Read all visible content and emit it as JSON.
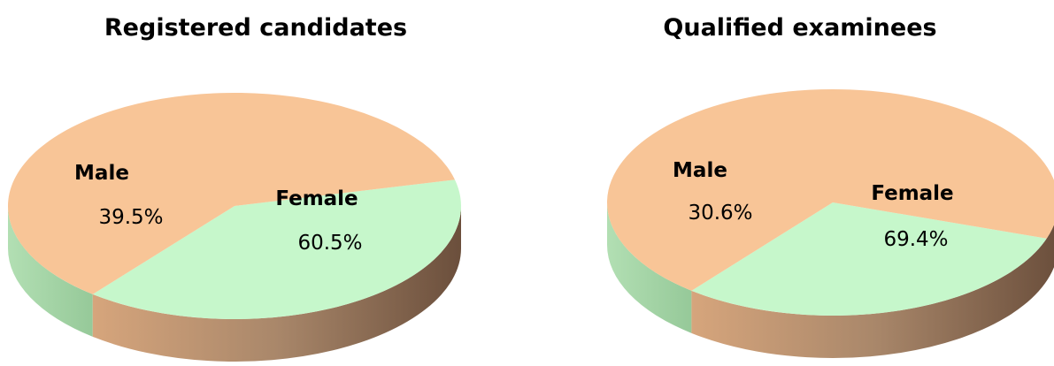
{
  "colors": {
    "male_top": "#c6f7cb",
    "female_top": "#f8c597",
    "male_side_light": "#b2dfb3",
    "male_side_dark": "#96c999",
    "female_side_light": "#d6a57c",
    "female_side_mid": "#a9876a",
    "female_side_dark": "#6b4f3c",
    "background": "#ffffff"
  },
  "chart_data": [
    {
      "type": "pie",
      "title": "Registered candidates",
      "slices": [
        {
          "label": "Male",
          "value": 39.5,
          "value_label": "39.5%",
          "color_key": "male"
        },
        {
          "label": "Female",
          "value": 60.5,
          "value_label": "60.5%",
          "color_key": "female"
        }
      ]
    },
    {
      "type": "pie",
      "title": "Qualified examinees",
      "slices": [
        {
          "label": "Male",
          "value": 30.6,
          "value_label": "30.6%",
          "color_key": "male"
        },
        {
          "label": "Female",
          "value": 69.4,
          "value_label": "69.4%",
          "color_key": "female"
        }
      ]
    }
  ]
}
